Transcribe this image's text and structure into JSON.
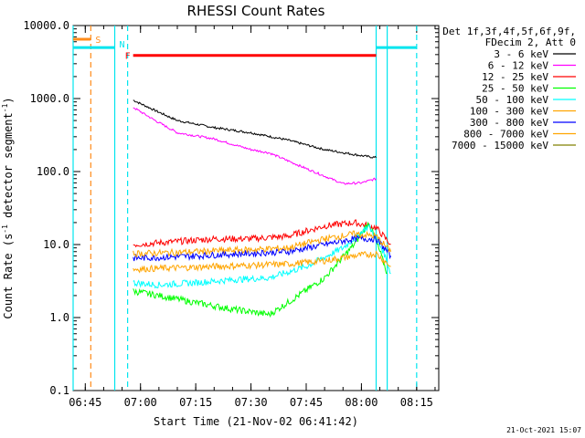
{
  "chart_data": {
    "type": "line",
    "title": "RHESSI Count Rates",
    "xlabel": "Start Time (21-Nov-02 06:41:42)",
    "ylabel_main": "Count Rate (s",
    "ylabel_exp1": "-1",
    "ylabel_mid": " detector segment",
    "ylabel_exp2": "-1",
    "ylabel_end": ")",
    "timestamp": "21-Oct-2021 15:07",
    "yscale": "log",
    "ylim": [
      0.1,
      10000
    ],
    "xlim": [
      "06:41:42",
      "08:21:00"
    ],
    "x_ticks": [
      "06:45",
      "07:00",
      "07:15",
      "07:30",
      "07:45",
      "08:00",
      "08:15"
    ],
    "y_ticks": [
      "10000.0",
      "1000.0",
      "100.0",
      "10.0",
      "1.0",
      "0.1"
    ],
    "legend_header": [
      "Det 1f,3f,4f,5f,6f,9f,",
      "FDecim 2, Att 0"
    ],
    "series": [
      {
        "name": "3 - 6 keV",
        "color": "#000000",
        "points": [
          [
            "06:58",
            950
          ],
          [
            "07:05",
            650
          ],
          [
            "07:10",
            500
          ],
          [
            "07:20",
            400
          ],
          [
            "07:30",
            340
          ],
          [
            "07:40",
            270
          ],
          [
            "07:50",
            200
          ],
          [
            "08:00",
            165
          ],
          [
            "08:04",
            155
          ]
        ]
      },
      {
        "name": "6 - 12 keV",
        "color": "#ff00ff",
        "points": [
          [
            "06:58",
            760
          ],
          [
            "07:04",
            500
          ],
          [
            "07:10",
            340
          ],
          [
            "07:20",
            280
          ],
          [
            "07:30",
            200
          ],
          [
            "07:35",
            180
          ],
          [
            "07:45",
            110
          ],
          [
            "07:55",
            68
          ],
          [
            "08:00",
            70
          ],
          [
            "08:04",
            80
          ]
        ]
      },
      {
        "name": "12 - 25 keV",
        "color": "#ff0000",
        "points": [
          [
            "06:58",
            10
          ],
          [
            "07:10",
            11
          ],
          [
            "07:20",
            12
          ],
          [
            "07:30",
            12
          ],
          [
            "07:40",
            13
          ],
          [
            "07:50",
            18
          ],
          [
            "07:58",
            20
          ],
          [
            "08:04",
            17
          ],
          [
            "08:08",
            10
          ]
        ]
      },
      {
        "name": "25 - 50 keV",
        "color": "#00ff00",
        "points": [
          [
            "06:58",
            2.3
          ],
          [
            "07:05",
            2.0
          ],
          [
            "07:15",
            1.6
          ],
          [
            "07:25",
            1.3
          ],
          [
            "07:35",
            1.1
          ],
          [
            "07:40",
            1.6
          ],
          [
            "07:50",
            3.5
          ],
          [
            "07:58",
            10
          ],
          [
            "08:02",
            20
          ],
          [
            "08:05",
            8
          ],
          [
            "08:07",
            4
          ]
        ]
      },
      {
        "name": "50 - 100 keV",
        "color": "#00ffff",
        "points": [
          [
            "06:58",
            3.0
          ],
          [
            "07:05",
            2.8
          ],
          [
            "07:15",
            3.0
          ],
          [
            "07:25",
            3.3
          ],
          [
            "07:35",
            3.5
          ],
          [
            "07:45",
            5.0
          ],
          [
            "07:55",
            9.0
          ],
          [
            "08:02",
            18
          ],
          [
            "08:06",
            8
          ],
          [
            "08:08",
            4
          ]
        ]
      },
      {
        "name": "100 - 300 keV",
        "color": "#ffa500",
        "points": [
          [
            "06:58",
            4.6
          ],
          [
            "07:10",
            4.8
          ],
          [
            "07:20",
            5.0
          ],
          [
            "07:30",
            5.2
          ],
          [
            "07:40",
            5.4
          ],
          [
            "07:50",
            6.0
          ],
          [
            "07:58",
            7.0
          ],
          [
            "08:04",
            7.5
          ],
          [
            "08:08",
            5
          ]
        ]
      },
      {
        "name": "300 - 800 keV",
        "color": "#0000ff",
        "points": [
          [
            "06:58",
            6.5
          ],
          [
            "07:10",
            6.8
          ],
          [
            "07:20",
            7.2
          ],
          [
            "07:30",
            7.6
          ],
          [
            "07:40",
            8.0
          ],
          [
            "07:50",
            10
          ],
          [
            "07:58",
            12
          ],
          [
            "08:04",
            12
          ],
          [
            "08:08",
            7
          ]
        ]
      },
      {
        "name": "800 - 7000 keV",
        "color": "#ffa500",
        "points": [
          [
            "06:58",
            7.5
          ],
          [
            "07:10",
            7.8
          ],
          [
            "07:20",
            8.2
          ],
          [
            "07:30",
            8.5
          ],
          [
            "07:40",
            9.0
          ],
          [
            "07:50",
            12
          ],
          [
            "07:58",
            14
          ],
          [
            "08:04",
            13
          ],
          [
            "08:08",
            8
          ]
        ]
      },
      {
        "name": "7000 - 15000 keV",
        "color": "#808000",
        "points": []
      }
    ],
    "annotations": [
      {
        "label": "S",
        "color": "#ff8c1a",
        "level": 6500,
        "start": "06:41:42",
        "end": "06:46:30"
      },
      {
        "label": "N",
        "color": "#00e5ee",
        "level": 5000,
        "start": "06:41:42",
        "end": "06:53:00"
      },
      {
        "label": "F",
        "color": "#ff0000",
        "level": 3900,
        "start": "06:58:00",
        "end": "08:04:00"
      },
      {
        "label": "",
        "color": "#00e5ee",
        "level": 5000,
        "start": "08:04:00",
        "end": "08:15:00"
      }
    ]
  }
}
